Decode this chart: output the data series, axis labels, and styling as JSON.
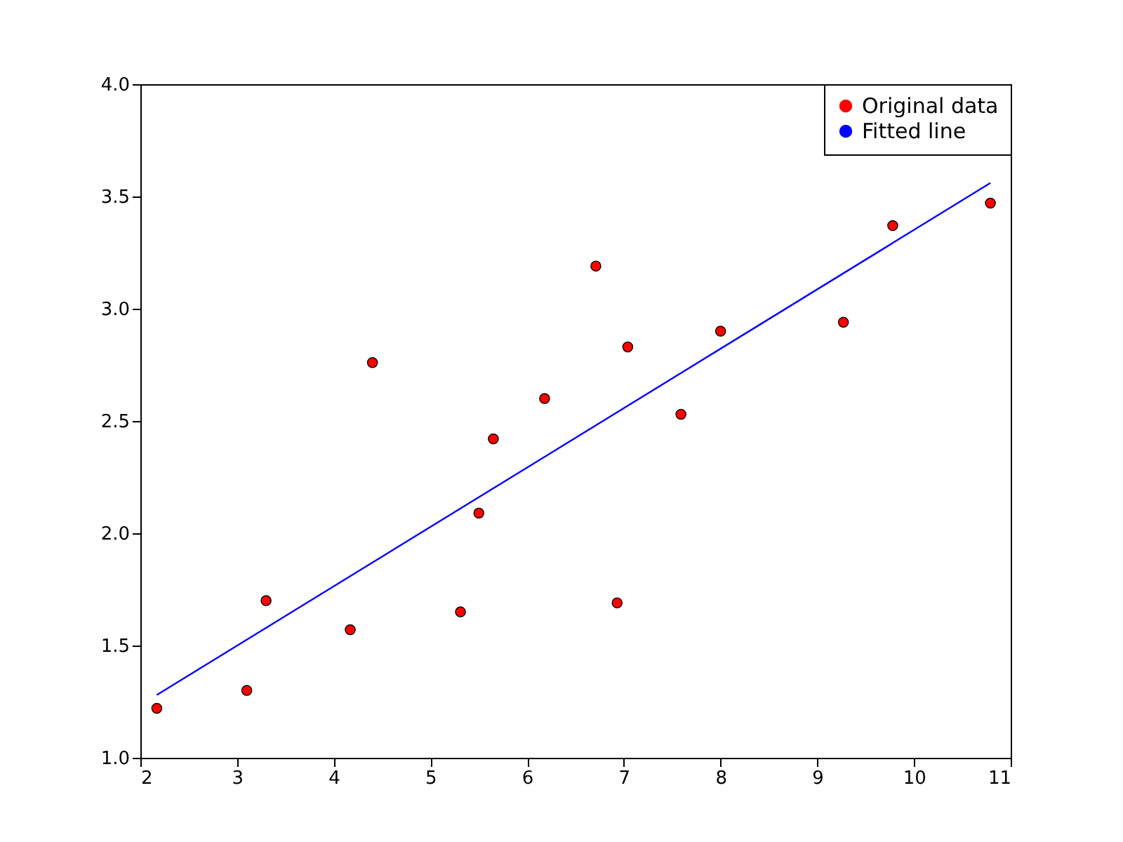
{
  "chart_data": {
    "type": "scatter",
    "xlim": [
      2,
      11
    ],
    "ylim": [
      1,
      4
    ],
    "xticks": [
      2,
      3,
      4,
      5,
      6,
      7,
      8,
      9,
      10,
      11
    ],
    "yticks": [
      {
        "value": 1,
        "label": "1.0"
      },
      {
        "value": 1.5,
        "label": "1.5"
      },
      {
        "value": 2,
        "label": "2.0"
      },
      {
        "value": 2.5,
        "label": "2.5"
      },
      {
        "value": 3,
        "label": "3.0"
      },
      {
        "value": 3.5,
        "label": "3.5"
      },
      {
        "value": 4,
        "label": "4.0"
      }
    ],
    "grid": false,
    "legend": "top right",
    "series": [
      {
        "name": "Original data",
        "type": "scatter",
        "color": "#ff0000",
        "marker": "circle",
        "x": [
          3.3,
          4.4,
          5.5,
          6.71,
          6.93,
          4.17,
          9.78,
          6.18,
          7.59,
          2.17,
          7.04,
          10.79,
          5.31,
          8.0,
          5.65,
          9.27,
          3.1
        ],
        "values": [
          1.7,
          2.76,
          2.09,
          3.19,
          1.69,
          1.57,
          3.37,
          2.6,
          2.53,
          1.22,
          2.83,
          3.47,
          1.65,
          2.9,
          2.42,
          2.94,
          1.3
        ]
      },
      {
        "name": "Fitted line",
        "type": "line",
        "color": "#0000ff",
        "line_style": "solid",
        "x": [
          2.17,
          10.79
        ],
        "values": [
          1.28,
          3.56
        ]
      }
    ]
  }
}
